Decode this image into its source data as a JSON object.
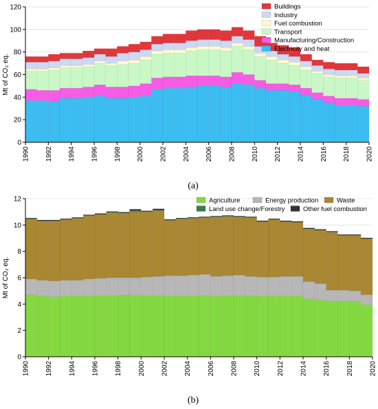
{
  "colors": {
    "buildings": "#e0373b",
    "industry": "#cdd8f4",
    "fuel_combustion": "#fdfbcf",
    "transport": "#c9f8c6",
    "manufacturing": "#f65ce6",
    "electricity": "#3cbdf2",
    "agriculture": "#84d940",
    "energy_production": "#b7b7b7",
    "waste": "#a98733",
    "land_use": "#3c7a4a",
    "other_fuel": "#333333"
  },
  "chart_data": [
    {
      "type": "area",
      "stacked": true,
      "style": "step",
      "panel_label": "(a)",
      "ylabel": "Mt of CO₂ eq.",
      "ylim": [
        0,
        120
      ],
      "yticks": [
        0,
        20,
        40,
        60,
        80,
        100,
        120
      ],
      "xlim": [
        1990,
        2020
      ],
      "xticks": [
        "1990",
        "1992",
        "1994",
        "1996",
        "1998",
        "2000",
        "2002",
        "2004",
        "2006",
        "2008",
        "2010",
        "2012",
        "2014",
        "2016",
        "2018",
        "2020"
      ],
      "grid": true,
      "legend_position": "top-right",
      "x": [
        1990,
        1991,
        1992,
        1993,
        1994,
        1995,
        1996,
        1997,
        1998,
        1999,
        2000,
        2001,
        2002,
        2003,
        2004,
        2005,
        2006,
        2007,
        2008,
        2009,
        2010,
        2011,
        2012,
        2013,
        2014,
        2015,
        2016,
        2017,
        2018,
        2019
      ],
      "series": [
        {
          "name": "Electricity and heat",
          "color_key": "electricity",
          "values": [
            37,
            37,
            36,
            39,
            39,
            40,
            41,
            39,
            39,
            40,
            41,
            47,
            48,
            48,
            49,
            50,
            50,
            49,
            52,
            51,
            48,
            46,
            46,
            45,
            42,
            38,
            35,
            33,
            33,
            32
          ]
        },
        {
          "name": "Manufacturing/Construction",
          "color_key": "manufacturing",
          "values": [
            10,
            9,
            10,
            9,
            9,
            9,
            10,
            10,
            10,
            10,
            11,
            10,
            10,
            10,
            10,
            9,
            9,
            9,
            10,
            9,
            7,
            6,
            6,
            6,
            6,
            6,
            6,
            6,
            6,
            6
          ]
        },
        {
          "name": "Transport",
          "color_key": "transport",
          "values": [
            16,
            17,
            18,
            18,
            18,
            18,
            19,
            19,
            20,
            20,
            21,
            21,
            21,
            21,
            22,
            23,
            23,
            23,
            23,
            22,
            21,
            21,
            18,
            17,
            16,
            17,
            17,
            18,
            18,
            17
          ]
        },
        {
          "name": "Fuel combustion",
          "color_key": "fuel_combustion",
          "values": [
            2,
            2,
            2,
            2,
            2,
            2,
            2,
            2,
            3,
            3,
            3,
            3,
            3,
            3,
            3,
            3,
            3,
            3,
            3,
            3,
            3,
            3,
            3,
            3,
            3,
            2,
            2,
            2,
            2,
            2
          ]
        },
        {
          "name": "Industry",
          "color_key": "industry",
          "values": [
            6,
            6,
            6,
            6,
            6,
            6,
            6,
            6,
            7,
            7,
            6,
            6,
            6,
            6,
            6,
            6,
            6,
            6,
            6,
            6,
            6,
            5,
            5,
            5,
            5,
            5,
            5,
            5,
            5,
            4
          ]
        },
        {
          "name": "Buildings",
          "color_key": "buildings",
          "values": [
            5,
            5,
            6,
            5,
            5,
            6,
            5,
            7,
            6,
            7,
            7,
            7,
            8,
            8,
            9,
            9,
            9,
            9,
            8,
            8,
            9,
            7,
            8,
            8,
            6,
            5,
            6,
            6,
            6,
            6
          ]
        }
      ]
    },
    {
      "type": "area",
      "stacked": true,
      "style": "step",
      "panel_label": "(b)",
      "ylabel": "Mt of CO₂ eq.",
      "ylim": [
        0,
        12
      ],
      "yticks": [
        0,
        2,
        4,
        6,
        8,
        10,
        12
      ],
      "xlim": [
        1990,
        2020
      ],
      "xticks": [
        "1990",
        "1992",
        "1994",
        "1996",
        "1998",
        "2000",
        "2002",
        "2004",
        "2006",
        "2008",
        "2010",
        "2012",
        "2014",
        "2016",
        "2018",
        "2020"
      ],
      "grid": true,
      "legend_position": "top-right",
      "x": [
        1990,
        1991,
        1992,
        1993,
        1994,
        1995,
        1996,
        1997,
        1998,
        1999,
        2000,
        2001,
        2002,
        2003,
        2004,
        2005,
        2006,
        2007,
        2008,
        2009,
        2010,
        2011,
        2012,
        2013,
        2014,
        2015,
        2016,
        2017,
        2018,
        2019
      ],
      "series": [
        {
          "name": "Agriculture",
          "color_key": "agriculture",
          "values": [
            4.7,
            4.6,
            4.55,
            4.6,
            4.6,
            4.6,
            4.65,
            4.65,
            4.7,
            4.65,
            4.65,
            4.65,
            4.6,
            4.6,
            4.6,
            4.65,
            4.6,
            4.6,
            4.65,
            4.6,
            4.6,
            4.6,
            4.6,
            4.6,
            4.4,
            4.3,
            4.2,
            4.2,
            4.2,
            3.95
          ]
        },
        {
          "name": "Energy production",
          "color_key": "energy_production",
          "values": [
            1.2,
            1.2,
            1.2,
            1.2,
            1.2,
            1.3,
            1.3,
            1.35,
            1.3,
            1.35,
            1.4,
            1.45,
            1.55,
            1.55,
            1.6,
            1.6,
            1.5,
            1.55,
            1.55,
            1.5,
            1.45,
            1.45,
            1.5,
            1.5,
            1.3,
            1.25,
            0.85,
            0.85,
            0.8,
            0.75
          ]
        },
        {
          "name": "Waste",
          "color_key": "waste",
          "values": [
            4.55,
            4.5,
            4.55,
            4.6,
            4.7,
            4.8,
            4.85,
            4.95,
            4.9,
            5.0,
            4.95,
            5.0,
            4.2,
            4.3,
            4.3,
            4.3,
            4.5,
            4.5,
            4.4,
            4.45,
            4.2,
            4.35,
            4.15,
            4.1,
            4.0,
            4.05,
            4.4,
            4.15,
            4.2,
            4.25
          ]
        },
        {
          "name": "Land use change/Forestry",
          "color_key": "land_use",
          "values": [
            0.03,
            0.03,
            0.03,
            0.03,
            0.03,
            0.03,
            0.03,
            0.03,
            0.03,
            0.1,
            0.03,
            0.03,
            0.03,
            0.03,
            0.03,
            0.03,
            0.03,
            0.03,
            0.03,
            0.03,
            0.03,
            0.03,
            0.03,
            0.03,
            0.03,
            0.03,
            0.03,
            0.03,
            0.03,
            0.03
          ]
        },
        {
          "name": "Other fuel combustion",
          "color_key": "other_fuel",
          "values": [
            0.05,
            0.05,
            0.05,
            0.05,
            0.05,
            0.05,
            0.05,
            0.05,
            0.05,
            0.1,
            0.05,
            0.1,
            0.05,
            0.05,
            0.05,
            0.05,
            0.05,
            0.05,
            0.05,
            0.05,
            0.05,
            0.05,
            0.05,
            0.05,
            0.05,
            0.05,
            0.05,
            0.05,
            0.05,
            0.05
          ]
        }
      ]
    }
  ]
}
